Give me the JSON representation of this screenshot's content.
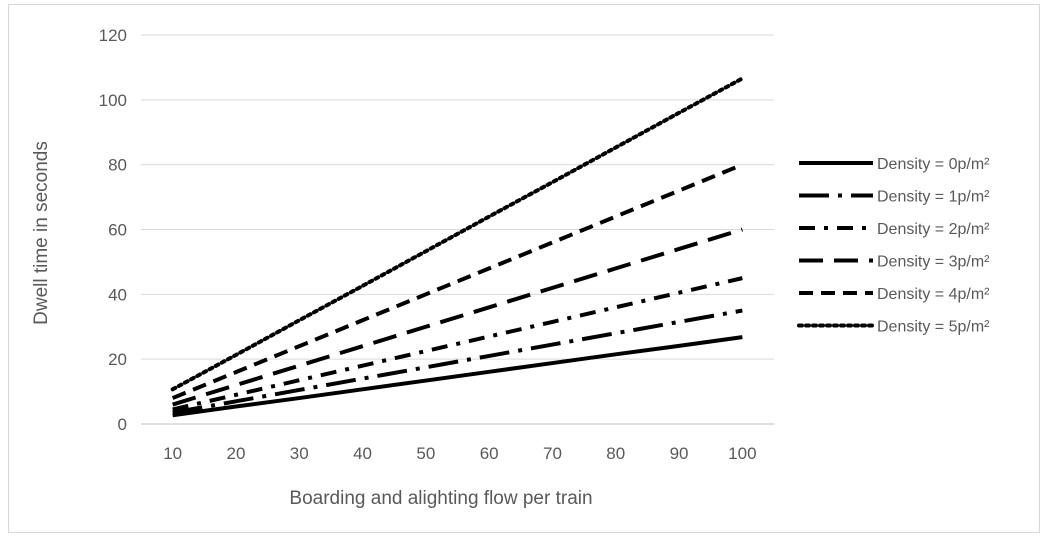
{
  "chart_data": {
    "type": "line",
    "title": "",
    "xlabel": "Boarding and alighting flow per train",
    "ylabel": "Dwell time in seconds",
    "x": [
      10,
      20,
      30,
      40,
      50,
      60,
      70,
      80,
      90,
      100
    ],
    "xticks": [
      "10",
      "20",
      "30",
      "40",
      "50",
      "60",
      "70",
      "80",
      "90",
      "100"
    ],
    "yticks": [
      "0",
      "20",
      "40",
      "60",
      "80",
      "100",
      "120"
    ],
    "ylim": [
      0,
      120
    ],
    "grid": true,
    "legend_position": "right",
    "series": [
      {
        "name": "Density = 0p/m²",
        "style": "solid",
        "values": [
          2.7,
          5.4,
          8.0,
          10.7,
          13.4,
          16.1,
          18.8,
          21.5,
          24.1,
          26.8
        ]
      },
      {
        "name": "Density = 1p/m²",
        "style": "long-dash-dot",
        "values": [
          3.5,
          7.0,
          10.5,
          14.0,
          17.5,
          21.0,
          24.5,
          28.0,
          31.5,
          35.0
        ]
      },
      {
        "name": "Density = 2p/m²",
        "style": "dash-dot",
        "values": [
          4.5,
          9.0,
          13.5,
          18.0,
          22.5,
          27.0,
          31.5,
          36.0,
          40.5,
          45.0
        ]
      },
      {
        "name": "Density = 3p/m²",
        "style": "long-dash",
        "values": [
          6.0,
          12.0,
          18.0,
          24.0,
          30.0,
          36.0,
          42.0,
          48.0,
          54.0,
          60.0
        ]
      },
      {
        "name": "Density = 4p/m²",
        "style": "dash",
        "values": [
          8.0,
          16.0,
          24.0,
          32.0,
          40.0,
          48.0,
          56.0,
          64.0,
          72.0,
          80.0
        ]
      },
      {
        "name": "Density = 5p/m²",
        "style": "dot",
        "values": [
          10.7,
          21.3,
          32.0,
          42.6,
          53.3,
          64.0,
          74.6,
          85.3,
          96.0,
          106.6
        ]
      }
    ]
  }
}
